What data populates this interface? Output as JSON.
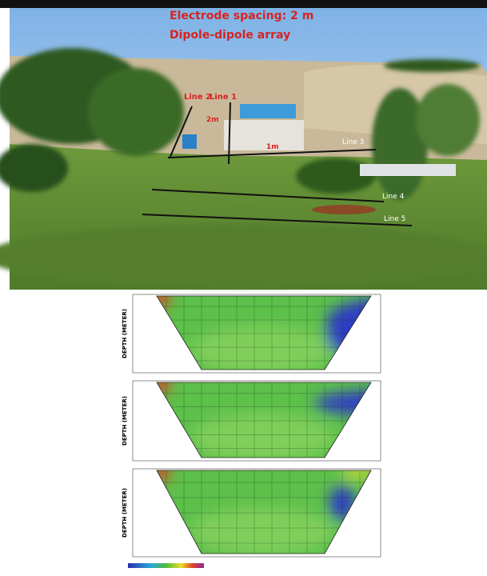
{
  "photo": {
    "spacing": "Electrode spacing: 2 m",
    "array": "Dipole-dipole array",
    "line1": "Line 1",
    "line2": "Line 2",
    "line3": "Line 3",
    "line4": "Line 4",
    "line5": "Line 5",
    "dist1": "2m",
    "dist2": "1m"
  },
  "sections": [
    {
      "axis_label": "DEPTH (METER)"
    },
    {
      "axis_label": "DEPTH (METER)"
    },
    {
      "axis_label": "DEPTH (METER)"
    }
  ]
}
